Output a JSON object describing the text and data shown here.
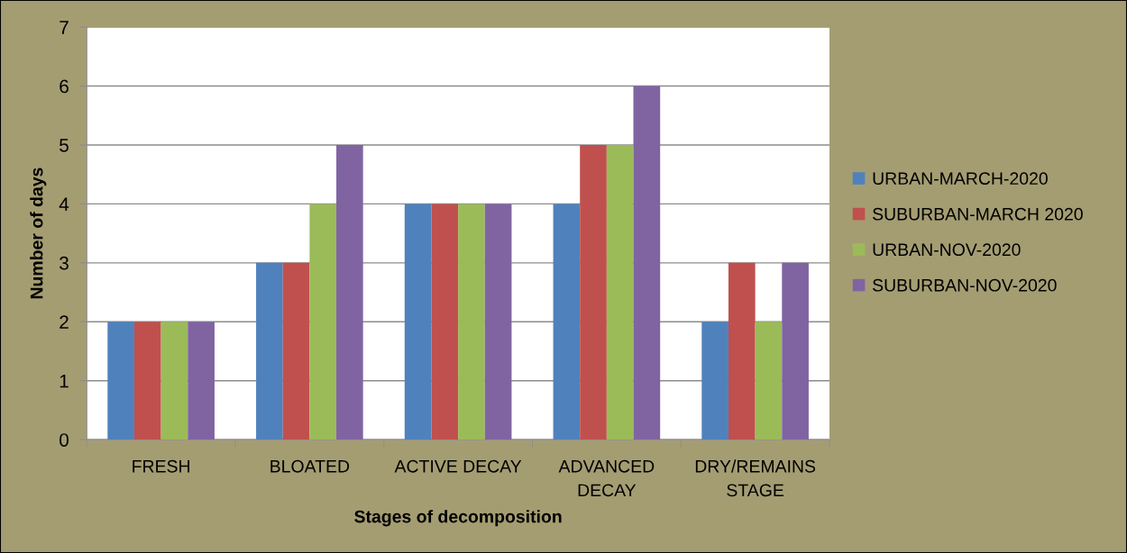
{
  "chart_data": {
    "type": "bar",
    "xlabel": "Stages of decomposition",
    "ylabel": "Number of days",
    "categories": [
      "FRESH",
      "BLOATED",
      "ACTIVE DECAY",
      "ADVANCED\nDECAY",
      "DRY/REMAINS\nSTAGE"
    ],
    "series": [
      {
        "name": "URBAN-MARCH-2020",
        "color": "#4f81bd",
        "values": [
          2,
          3,
          4,
          4,
          2
        ]
      },
      {
        "name": "SUBURBAN-MARCH 2020",
        "color": "#c0504d",
        "values": [
          2,
          3,
          4,
          5,
          3
        ]
      },
      {
        "name": "URBAN-NOV-2020",
        "color": "#9bbb59",
        "values": [
          2,
          4,
          4,
          5,
          2
        ]
      },
      {
        "name": "SUBURBAN-NOV-2020",
        "color": "#8064a2",
        "values": [
          2,
          5,
          4,
          6,
          3
        ]
      }
    ],
    "ylim": [
      0,
      7
    ],
    "yticks": [
      0,
      1,
      2,
      3,
      4,
      5,
      6,
      7
    ],
    "grid": "y",
    "legend": "right"
  }
}
